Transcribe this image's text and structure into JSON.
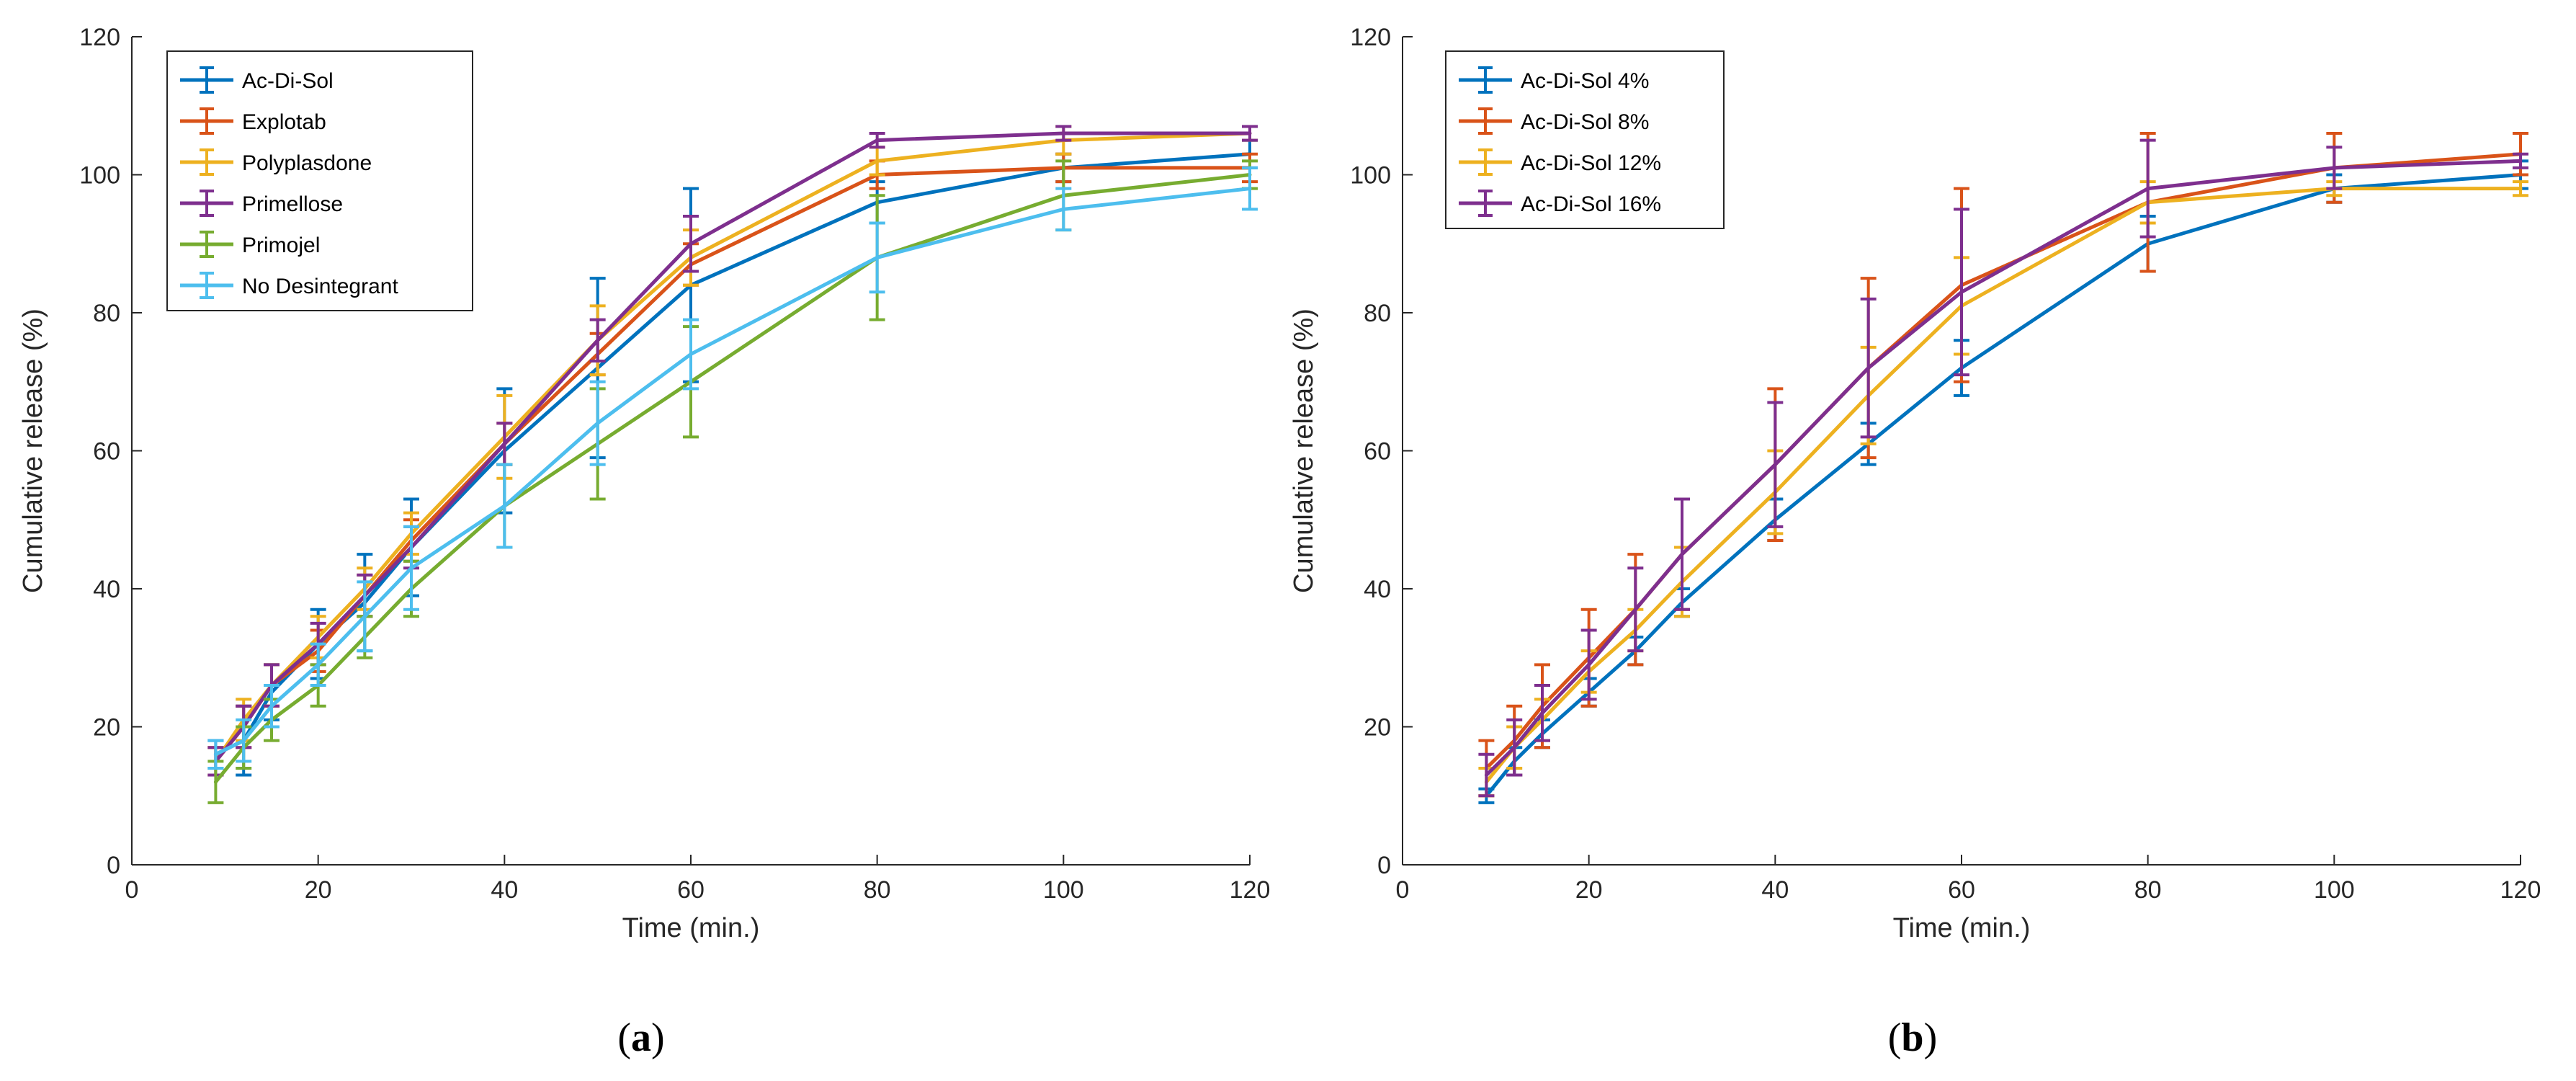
{
  "chart_data": [
    {
      "type": "line",
      "panel_label": "(a)",
      "xlabel": "Time (min.)",
      "ylabel": "Cumulative release (%)",
      "xlim": [
        0,
        120
      ],
      "ylim": [
        0,
        120
      ],
      "xticks": [
        0,
        20,
        40,
        60,
        80,
        100,
        120
      ],
      "yticks": [
        0,
        20,
        40,
        60,
        80,
        100,
        120
      ],
      "legend_position": "top-left",
      "error_bars": true,
      "x": [
        9,
        12,
        15,
        20,
        25,
        30,
        40,
        50,
        60,
        80,
        100,
        120
      ],
      "series": [
        {
          "name": "Ac-Di-Sol",
          "color": "#0072BD",
          "values": [
            16,
            18,
            25,
            32,
            38,
            46,
            60,
            72,
            84,
            96,
            101,
            103
          ],
          "errors": [
            2,
            5,
            4,
            5,
            7,
            7,
            9,
            13,
            14,
            3,
            2,
            2
          ]
        },
        {
          "name": "Explotab",
          "color": "#D95319",
          "values": [
            15,
            20,
            26,
            31,
            39,
            47,
            61,
            74,
            87,
            100,
            101,
            101
          ],
          "errors": [
            2,
            3,
            3,
            3,
            3,
            3,
            3,
            3,
            3,
            2,
            2,
            2
          ]
        },
        {
          "name": "Polyplasdone",
          "color": "#EDB120",
          "values": [
            15,
            21,
            26,
            33,
            40,
            48,
            62,
            76,
            88,
            102,
            105,
            106
          ],
          "errors": [
            2,
            3,
            3,
            3,
            3,
            3,
            6,
            5,
            4,
            2,
            2,
            1
          ]
        },
        {
          "name": "Primellose",
          "color": "#7E2F8E",
          "values": [
            15,
            20,
            26,
            32,
            39,
            46,
            61,
            76,
            90,
            105,
            106,
            106
          ],
          "errors": [
            2,
            3,
            3,
            3,
            3,
            3,
            3,
            3,
            4,
            1,
            1,
            1
          ]
        },
        {
          "name": "Primojel",
          "color": "#77AC30",
          "values": [
            12,
            17,
            21,
            26,
            33,
            40,
            52,
            61,
            70,
            88,
            97,
            100
          ],
          "errors": [
            3,
            3,
            3,
            3,
            3,
            4,
            6,
            8,
            8,
            9,
            5,
            2
          ]
        },
        {
          "name": "No Desintegrant",
          "color": "#4DBEEE",
          "values": [
            16,
            18,
            23,
            29,
            36,
            43,
            52,
            64,
            74,
            88,
            95,
            98
          ],
          "errors": [
            2,
            3,
            3,
            3,
            5,
            6,
            6,
            6,
            5,
            5,
            3,
            3
          ]
        }
      ]
    },
    {
      "type": "line",
      "panel_label": "(b)",
      "xlabel": "Time (min.)",
      "ylabel": "Cumulative release (%)",
      "xlim": [
        0,
        120
      ],
      "ylim": [
        0,
        120
      ],
      "xticks": [
        0,
        20,
        40,
        60,
        80,
        100,
        120
      ],
      "yticks": [
        0,
        20,
        40,
        60,
        80,
        100,
        120
      ],
      "legend_position": "top-left",
      "error_bars": true,
      "x": [
        9,
        12,
        15,
        20,
        25,
        30,
        40,
        50,
        60,
        80,
        100,
        120
      ],
      "series": [
        {
          "name": "Ac-Di-Sol 4%",
          "color": "#0072BD",
          "values": [
            10,
            15,
            19,
            25,
            31,
            38,
            50,
            61,
            72,
            90,
            98,
            100
          ],
          "errors": [
            1,
            2,
            2,
            2,
            2,
            2,
            3,
            3,
            4,
            4,
            2,
            2
          ]
        },
        {
          "name": "Ac-Di-Sol 8%",
          "color": "#D95319",
          "values": [
            14,
            18,
            23,
            30,
            37,
            45,
            58,
            72,
            84,
            96,
            101,
            103
          ],
          "errors": [
            4,
            5,
            6,
            7,
            8,
            8,
            11,
            13,
            14,
            10,
            5,
            3
          ]
        },
        {
          "name": "Ac-Di-Sol 12%",
          "color": "#EDB120",
          "values": [
            12,
            17,
            21,
            28,
            34,
            41,
            54,
            68,
            81,
            96,
            98,
            98
          ],
          "errors": [
            2,
            3,
            3,
            3,
            3,
            5,
            6,
            7,
            7,
            3,
            1,
            1
          ]
        },
        {
          "name": "Ac-Di-Sol 16%",
          "color": "#7E2F8E",
          "values": [
            13,
            17,
            22,
            29,
            37,
            45,
            58,
            72,
            83,
            98,
            101,
            102
          ],
          "errors": [
            3,
            4,
            4,
            5,
            6,
            8,
            9,
            10,
            12,
            7,
            3,
            1
          ]
        }
      ]
    }
  ]
}
